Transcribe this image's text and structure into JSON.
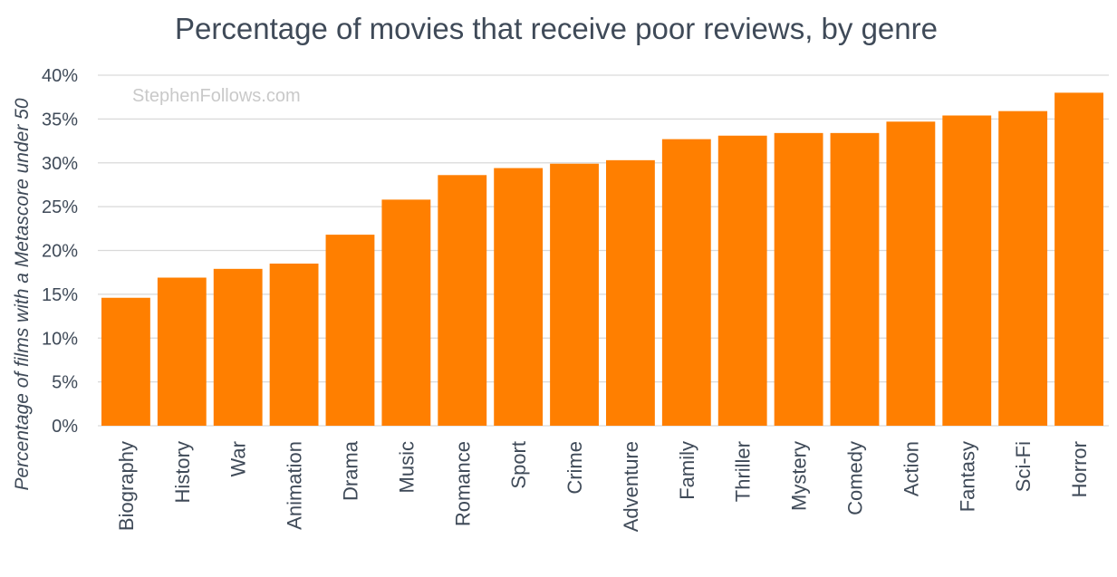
{
  "chart_data": {
    "type": "bar",
    "title": "Percentage of movies that receive poor reviews, by genre",
    "xlabel": "",
    "ylabel": "Percentage of films with a Metascore under 50",
    "watermark": "StephenFollows.com",
    "ylim": [
      0,
      40
    ],
    "yticks": [
      "0%",
      "5%",
      "10%",
      "15%",
      "20%",
      "25%",
      "30%",
      "35%",
      "40%"
    ],
    "ytick_values": [
      0,
      5,
      10,
      15,
      20,
      25,
      30,
      35,
      40
    ],
    "grid": true,
    "bar_color": "#ff7f00",
    "categories": [
      "Biography",
      "History",
      "War",
      "Animation",
      "Drama",
      "Music",
      "Romance",
      "Sport",
      "Crime",
      "Adventure",
      "Family",
      "Thriller",
      "Mystery",
      "Comedy",
      "Action",
      "Fantasy",
      "Sci-Fi",
      "Horror"
    ],
    "values": [
      14.6,
      16.9,
      17.9,
      18.5,
      21.8,
      25.8,
      28.6,
      29.4,
      29.9,
      30.3,
      32.7,
      33.1,
      33.4,
      33.4,
      34.7,
      35.4,
      35.9,
      38.0
    ]
  }
}
